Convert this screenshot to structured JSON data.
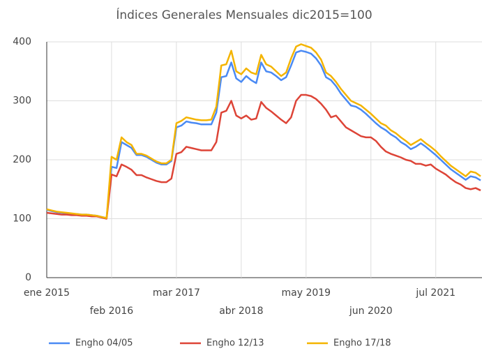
{
  "chart_data": {
    "type": "line",
    "title": "Índices Generales Mensuales dic2015=100",
    "categories": [
      "ene 2015",
      null,
      null,
      null,
      null,
      null,
      null,
      null,
      null,
      null,
      null,
      null,
      null,
      "feb 2016",
      null,
      null,
      null,
      null,
      null,
      null,
      null,
      null,
      null,
      null,
      null,
      null,
      "mar 2017",
      null,
      null,
      null,
      null,
      null,
      null,
      null,
      null,
      null,
      null,
      null,
      null,
      "abr 2018",
      null,
      null,
      null,
      null,
      null,
      null,
      null,
      null,
      null,
      null,
      null,
      null,
      "may 2019",
      null,
      null,
      null,
      null,
      null,
      null,
      null,
      null,
      null,
      null,
      null,
      null,
      "jun 2020",
      null,
      null,
      null,
      null,
      null,
      null,
      null,
      null,
      null,
      null,
      null,
      null,
      "jul 2021",
      null,
      null,
      null,
      null,
      null,
      null,
      null,
      null,
      null
    ],
    "series": [
      {
        "name": "Engho 04/05",
        "color": "#4a8af4",
        "values": [
          115,
          113,
          111,
          110,
          109,
          108,
          108,
          107,
          107,
          106,
          105,
          103,
          101,
          188,
          186,
          230,
          225,
          220,
          208,
          208,
          205,
          200,
          195,
          192,
          192,
          198,
          255,
          258,
          265,
          263,
          262,
          260,
          260,
          260,
          280,
          340,
          342,
          365,
          338,
          332,
          342,
          335,
          330,
          365,
          350,
          348,
          342,
          335,
          340,
          360,
          382,
          385,
          383,
          380,
          372,
          360,
          340,
          335,
          325,
          312,
          302,
          292,
          290,
          285,
          278,
          270,
          262,
          255,
          250,
          243,
          238,
          230,
          225,
          218,
          222,
          228,
          222,
          215,
          208,
          200,
          192,
          184,
          178,
          172,
          166,
          172,
          170,
          165
        ]
      },
      {
        "name": "Engho 12/13",
        "color": "#dd4437",
        "values": [
          110,
          109,
          108,
          107,
          107,
          106,
          106,
          105,
          105,
          104,
          104,
          102,
          100,
          175,
          172,
          192,
          188,
          183,
          174,
          174,
          170,
          167,
          164,
          162,
          162,
          168,
          210,
          213,
          222,
          220,
          218,
          216,
          216,
          216,
          230,
          280,
          283,
          300,
          275,
          270,
          275,
          268,
          270,
          298,
          288,
          282,
          275,
          268,
          262,
          272,
          300,
          310,
          310,
          308,
          303,
          295,
          285,
          272,
          275,
          265,
          255,
          250,
          245,
          240,
          238,
          238,
          232,
          222,
          214,
          210,
          207,
          204,
          200,
          198,
          193,
          193,
          190,
          192,
          185,
          180,
          175,
          168,
          162,
          158,
          152,
          150,
          152,
          148
        ]
      },
      {
        "name": "Engho 17/18",
        "color": "#f4b400",
        "values": [
          116,
          114,
          112,
          111,
          110,
          109,
          108,
          107,
          107,
          106,
          105,
          103,
          101,
          205,
          200,
          238,
          230,
          225,
          210,
          210,
          207,
          202,
          197,
          194,
          194,
          200,
          262,
          266,
          272,
          270,
          268,
          267,
          267,
          268,
          290,
          360,
          362,
          385,
          350,
          345,
          355,
          348,
          345,
          378,
          362,
          358,
          350,
          342,
          348,
          372,
          392,
          396,
          393,
          390,
          382,
          370,
          348,
          342,
          332,
          320,
          310,
          300,
          296,
          292,
          285,
          278,
          270,
          262,
          258,
          250,
          245,
          238,
          232,
          225,
          230,
          235,
          228,
          222,
          215,
          206,
          198,
          190,
          184,
          178,
          172,
          180,
          178,
          172
        ]
      }
    ],
    "ylim": [
      0,
      400
    ],
    "yticks": [
      0,
      100,
      200,
      300,
      400
    ],
    "grid": true,
    "legend": "bottom"
  }
}
